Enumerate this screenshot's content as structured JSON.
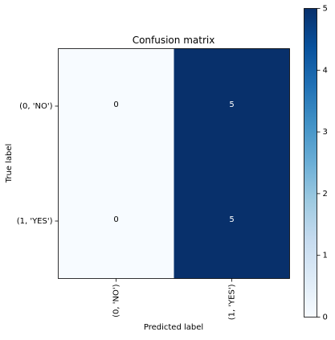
{
  "chart_data": {
    "type": "heatmap",
    "title": "Confusion matrix",
    "xlabel": "Predicted label",
    "ylabel": "True label",
    "x_categories": [
      "(0, 'NO')",
      "(1, 'YES')"
    ],
    "y_categories": [
      "(0, 'NO')",
      "(1, 'YES')"
    ],
    "values": [
      [
        0,
        5
      ],
      [
        0,
        5
      ]
    ],
    "colormap": "Blues",
    "colors": {
      "low": "#f7fbff",
      "high": "#08306b"
    },
    "colorbar": {
      "ticks": [
        0,
        1,
        2,
        3,
        4,
        5
      ],
      "range": [
        0,
        5
      ]
    },
    "cell_text_colors": {
      "light_cell": "#000000",
      "dark_cell": "#ffffff"
    },
    "grid": false
  }
}
